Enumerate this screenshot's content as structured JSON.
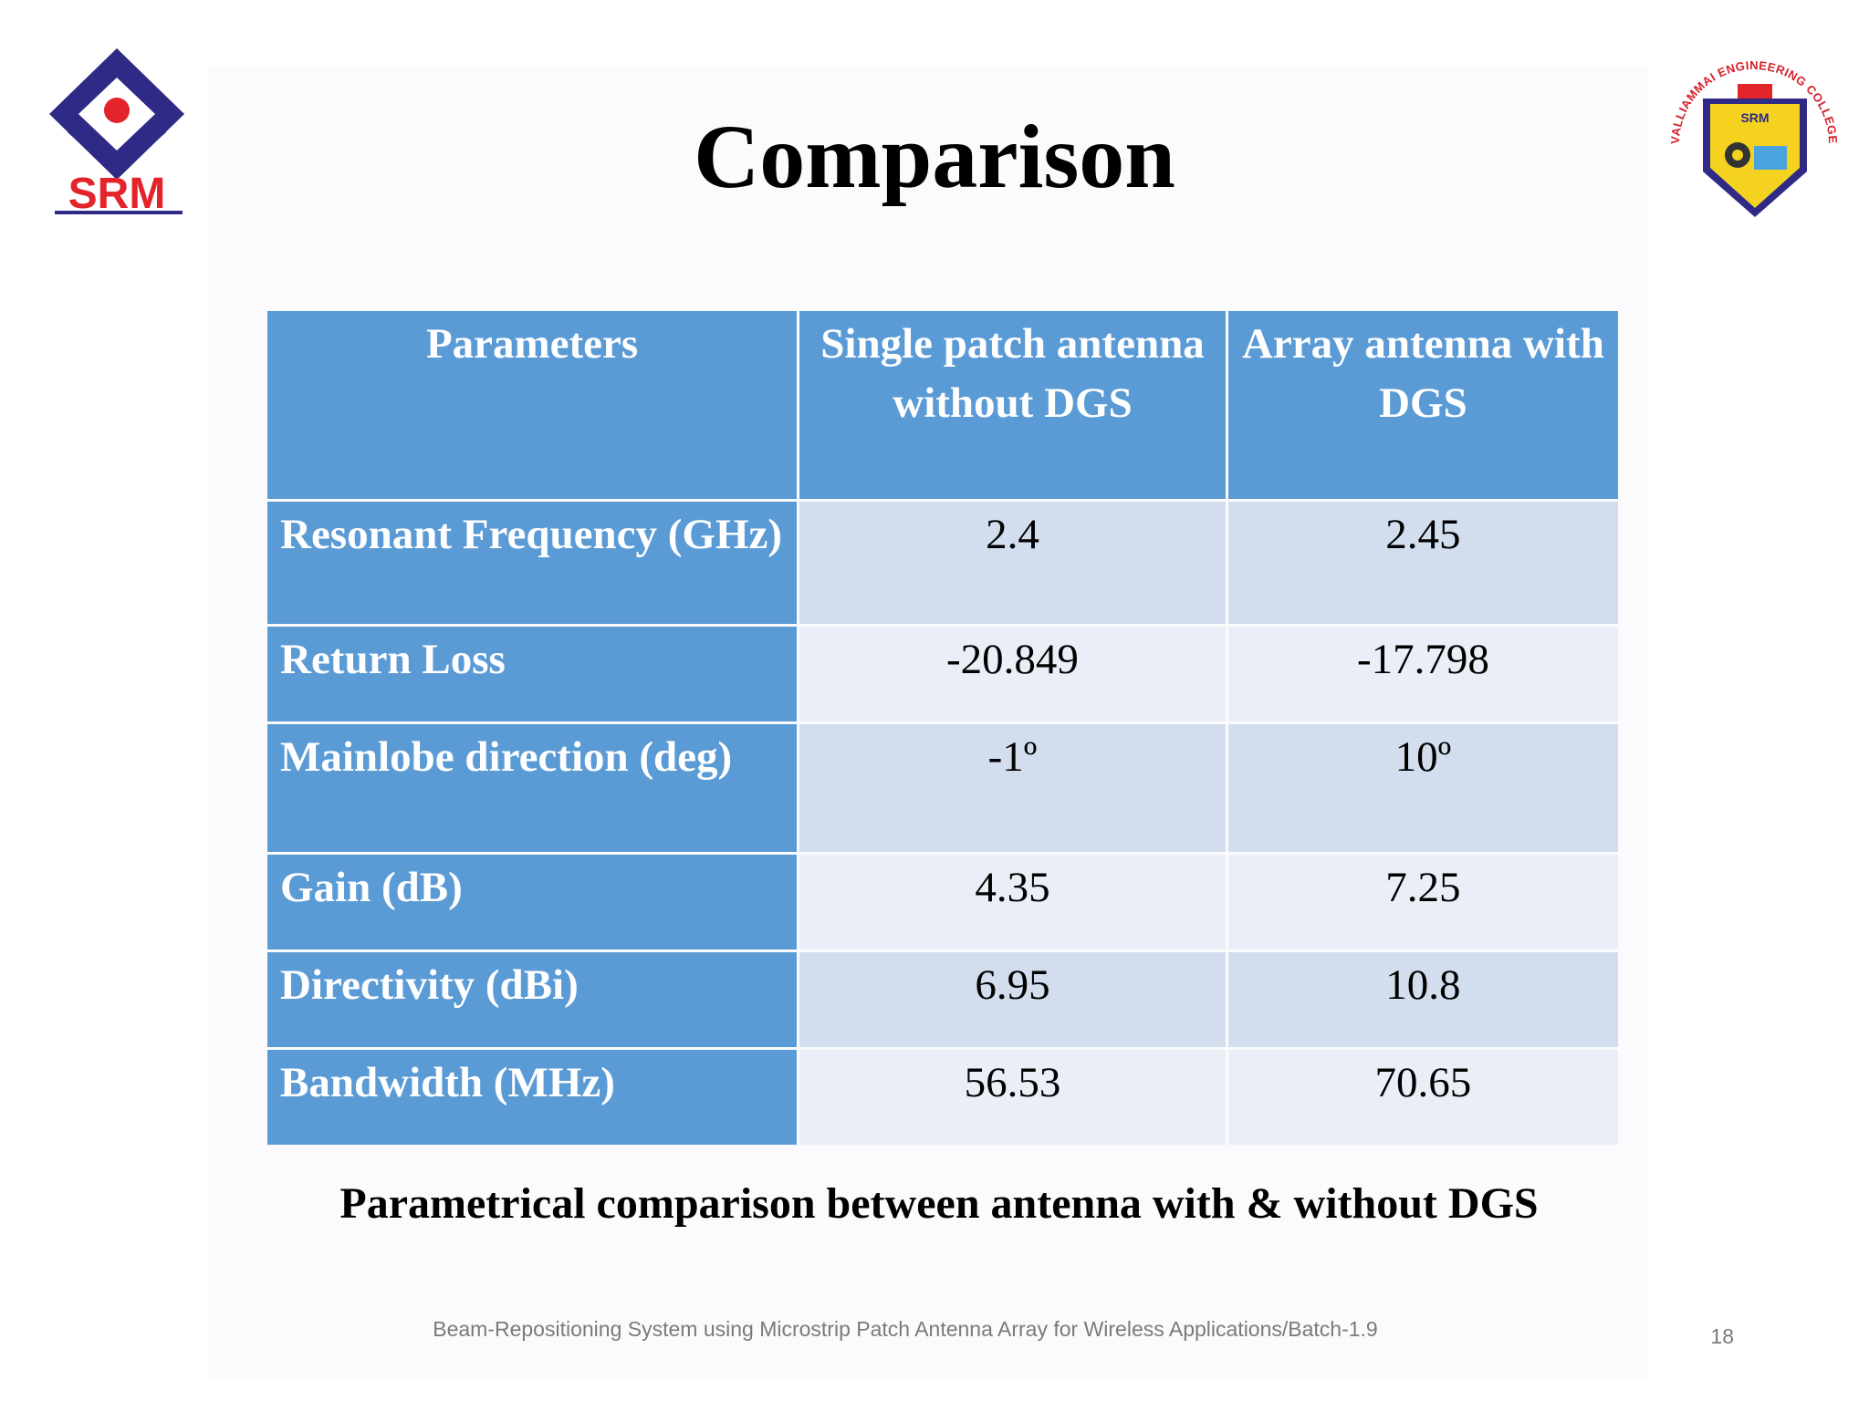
{
  "slide": {
    "title": "Comparison",
    "caption": "Parametrical comparison between antenna with & without DGS",
    "footer": "Beam-Repositioning System using Microstrip Patch Antenna Array for Wireless Applications/Batch-1.9",
    "page_number": "18"
  },
  "logos": {
    "left_text": "SRM",
    "right_seal_text": "VALLIAMMAI ENGINEERING COLLEGE",
    "right_shield_text": "SRM"
  },
  "table": {
    "headers": [
      "Parameters",
      "Single patch antenna without DGS",
      "Array antenna with DGS"
    ],
    "rows": [
      {
        "param": "Resonant Frequency (GHz)",
        "single": "2.4",
        "array": "2.45"
      },
      {
        "param": "Return Loss",
        "single": "-20.849",
        "array": "-17.798"
      },
      {
        "param": "Mainlobe direction (deg)",
        "single": "-1º",
        "array": "10º"
      },
      {
        "param": "Gain (dB)",
        "single": "4.35",
        "array": "7.25"
      },
      {
        "param": "Directivity (dBi)",
        "single": "6.95",
        "array": "10.8"
      },
      {
        "param": "Bandwidth (MHz)",
        "single": "56.53",
        "array": "70.65"
      }
    ]
  },
  "colors": {
    "header_blue": "#5b9bd5",
    "row_band_dark": "#d2deee",
    "row_band_light": "#eaeff7",
    "srm_red": "#e4242b",
    "srm_navy": "#2e2a86",
    "shield_yellow": "#f4d21f"
  }
}
